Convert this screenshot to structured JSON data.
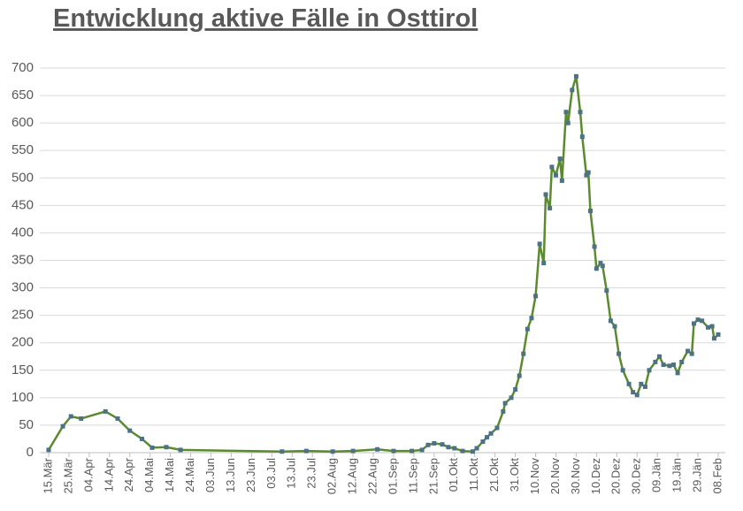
{
  "chart_data": {
    "type": "line",
    "title": "Entwicklung aktive Fälle in Osttirol",
    "x": [
      "15.Mär",
      "22.Mär",
      "26.Mär",
      "31.Mär",
      "12.Apr",
      "18.Apr",
      "24.Apr",
      "30.Apr",
      "05.Mai",
      "12.Mai",
      "19.Mai",
      "08.Jul",
      "20.Jul",
      "02.Aug",
      "12.Aug",
      "24.Aug",
      "01.Sep",
      "10.Sep",
      "15.Sep",
      "18.Sep",
      "21.Sep",
      "25.Sep",
      "28.Sep",
      "01.Okt",
      "05.Okt",
      "10.Okt",
      "12.Okt",
      "15.Okt",
      "17.Okt",
      "19.Okt",
      "22.Okt",
      "25.Okt",
      "26.Okt",
      "29.Okt",
      "31.Okt",
      "02.Nov",
      "04.Nov",
      "06.Nov",
      "08.Nov",
      "10.Nov",
      "12.Nov",
      "14.Nov",
      "15.Nov",
      "17.Nov",
      "18.Nov",
      "20.Nov",
      "22.Nov",
      "23.Nov",
      "25.Nov",
      "26.Nov",
      "28.Nov",
      "30.Nov",
      "02.Dez",
      "03.Dez",
      "05.Dez",
      "06.Dez",
      "07.Dez",
      "09.Dez",
      "10.Dez",
      "12.Dez",
      "13.Dez",
      "15.Dez",
      "17.Dez",
      "19.Dez",
      "21.Dez",
      "23.Dez",
      "26.Dez",
      "28.Dez",
      "30.Dez",
      "01.Jän",
      "03.Jän",
      "05.Jän",
      "08.Jän",
      "10.Jän",
      "12.Jän",
      "15.Jän",
      "17.Jän",
      "19.Jän",
      "21.Jän",
      "24.Jän",
      "26.Jän",
      "27.Jän",
      "29.Jän",
      "31.Jän",
      "03.Feb",
      "05.Feb",
      "06.Feb",
      "08.Feb"
    ],
    "series": [
      {
        "name": "aktive Fälle",
        "color": "#5b8a2f",
        "marker_color": "#4d7283",
        "values": [
          5,
          48,
          66,
          62,
          75,
          62,
          40,
          25,
          9,
          10,
          5,
          2,
          3,
          2,
          3,
          6,
          3,
          3,
          5,
          14,
          17,
          15,
          10,
          8,
          3,
          2,
          8,
          20,
          28,
          35,
          45,
          75,
          90,
          100,
          115,
          140,
          180,
          225,
          245,
          285,
          380,
          345,
          470,
          445,
          520,
          505,
          535,
          495,
          620,
          600,
          660,
          685,
          620,
          575,
          505,
          510,
          440,
          375,
          335,
          345,
          340,
          295,
          240,
          230,
          180,
          150,
          125,
          110,
          105,
          125,
          120,
          150,
          165,
          175,
          160,
          158,
          160,
          145,
          165,
          185,
          180,
          235,
          242,
          240,
          228,
          230,
          208,
          215
        ]
      }
    ],
    "xlim": [
      "15.Mär",
      "08.Feb"
    ],
    "xticks": [
      "15.Mär",
      "25.Mär",
      "04.Apr",
      "14.Apr",
      "24.Apr",
      "04.Mai",
      "14.Mai",
      "24.Mai",
      "03.Jun",
      "13.Jun",
      "23.Jun",
      "03.Jul",
      "13.Jul",
      "23.Jul",
      "02.Aug",
      "12.Aug",
      "22.Aug",
      "01.Sep",
      "11.Sep",
      "21.Sep",
      "01.Okt",
      "11.Okt",
      "21.Okt",
      "31.Okt",
      "10.Nov",
      "20.Nov",
      "30.Nov",
      "10.Dez",
      "20.Dez",
      "30.Dez",
      "09.Jän",
      "19.Jän",
      "29.Jän",
      "08.Feb"
    ],
    "ylim": [
      0,
      700
    ],
    "yticks": [
      0,
      50,
      100,
      150,
      200,
      250,
      300,
      350,
      400,
      450,
      500,
      550,
      600,
      650,
      700
    ],
    "grid": true
  }
}
